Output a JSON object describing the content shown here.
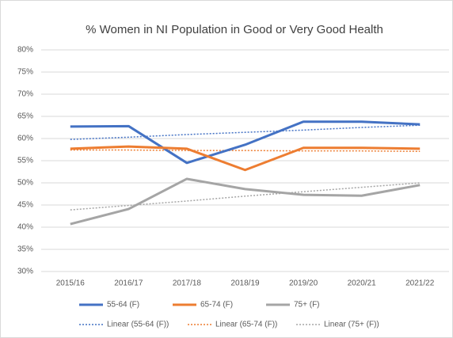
{
  "chart_data": {
    "type": "line",
    "title": "% Women in NI Population in Good or Very Good Health",
    "categories": [
      "2015/16",
      "2016/17",
      "2017/18",
      "2018/19",
      "2019/20",
      "2020/21",
      "2021/22"
    ],
    "series": [
      {
        "name": "55-64 (F)",
        "color": "#4472c4",
        "dashed": false,
        "values": [
          62.7,
          62.8,
          54.5,
          58.6,
          63.8,
          63.8,
          63.2
        ]
      },
      {
        "name": "65-74 (F)",
        "color": "#ed7d31",
        "dashed": false,
        "values": [
          57.7,
          58.2,
          57.7,
          52.9,
          57.9,
          57.9,
          57.7
        ]
      },
      {
        "name": "75+ (F)",
        "color": "#a5a5a5",
        "dashed": false,
        "values": [
          40.7,
          44.1,
          50.9,
          48.6,
          47.3,
          47.1,
          49.5
        ]
      },
      {
        "name": "Linear (55-64 (F))",
        "color": "#4472c4",
        "dashed": true,
        "values": [
          59.8,
          60.3,
          60.9,
          61.4,
          61.9,
          62.5,
          63.0
        ]
      },
      {
        "name": "Linear (65-74 (F))",
        "color": "#ed7d31",
        "dashed": true,
        "values": [
          57.4,
          57.4,
          57.3,
          57.3,
          57.2,
          57.2,
          57.1
        ]
      },
      {
        "name": "Linear (75+ (F))",
        "color": "#a5a5a5",
        "dashed": true,
        "values": [
          43.9,
          44.9,
          45.9,
          47.0,
          48.0,
          49.0,
          50.0
        ]
      }
    ],
    "ylim": [
      30,
      80
    ],
    "yticks": [
      {
        "value": 30,
        "label": "30%"
      },
      {
        "value": 35,
        "label": "35%"
      },
      {
        "value": 40,
        "label": "40%"
      },
      {
        "value": 45,
        "label": "45%"
      },
      {
        "value": 50,
        "label": "50%"
      },
      {
        "value": 55,
        "label": "55%"
      },
      {
        "value": 60,
        "label": "60%"
      },
      {
        "value": 65,
        "label": "65%"
      },
      {
        "value": 70,
        "label": "70%"
      },
      {
        "value": 75,
        "label": "75%"
      },
      {
        "value": 80,
        "label": "80%"
      }
    ],
    "grid": true
  }
}
